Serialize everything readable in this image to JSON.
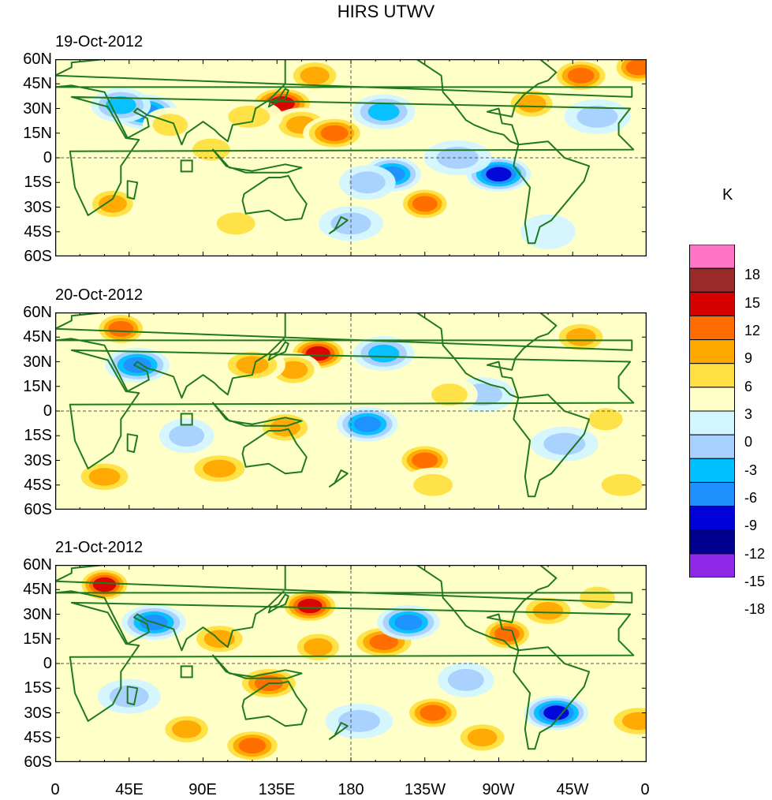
{
  "title": "HIRS UTWV",
  "units": "K",
  "lat_ticks": [
    "60N",
    "45N",
    "30N",
    "15N",
    "0",
    "15S",
    "30S",
    "45S",
    "60S"
  ],
  "lon_ticks": [
    "0",
    "45E",
    "90E",
    "135E",
    "180",
    "135W",
    "90W",
    "45W",
    "0"
  ],
  "panels": [
    {
      "date": "19-Oct-2012"
    },
    {
      "date": "20-Oct-2012"
    },
    {
      "date": "21-Oct-2012"
    }
  ],
  "colorbar": {
    "levels": [
      "18",
      "15",
      "12",
      "9",
      "6",
      "3",
      "0",
      "-3",
      "-6",
      "-9",
      "-12",
      "-15",
      "-18"
    ],
    "colors": [
      "#ff74c4",
      "#9a2a2a",
      "#d60000",
      "#ff6c00",
      "#ffa800",
      "#ffe040",
      "#ffffc8",
      "#d2f5ff",
      "#a8d0ff",
      "#00c0ff",
      "#2090ff",
      "#0000d8",
      "#000090",
      "#9028e8"
    ]
  },
  "colors": {
    "coastline": "#1f7a1f",
    "background_field": "#ffffc8"
  },
  "chart_data": {
    "type": "heatmap",
    "title": "HIRS UTWV",
    "units": "K",
    "x_range": [
      0,
      360
    ],
    "y_range": [
      -60,
      60
    ],
    "panels": [
      "19-Oct-2012",
      "20-Oct-2012",
      "21-Oct-2012"
    ],
    "anomalies": [
      [
        {
          "lon": 35,
          "lat": -28,
          "v": 9
        },
        {
          "lon": 55,
          "lat": 28,
          "v": -12
        },
        {
          "lon": 40,
          "lat": 32,
          "v": -9
        },
        {
          "lon": 70,
          "lat": 20,
          "v": 6
        },
        {
          "lon": 138,
          "lat": 33,
          "v": 15
        },
        {
          "lon": 150,
          "lat": 20,
          "v": 9
        },
        {
          "lon": 158,
          "lat": 50,
          "v": 9
        },
        {
          "lon": 118,
          "lat": 25,
          "v": 6
        },
        {
          "lon": 170,
          "lat": 15,
          "v": 12
        },
        {
          "lon": 205,
          "lat": -10,
          "v": -12
        },
        {
          "lon": 225,
          "lat": -28,
          "v": 12
        },
        {
          "lon": 270,
          "lat": -10,
          "v": -15
        },
        {
          "lon": 320,
          "lat": 50,
          "v": 12
        },
        {
          "lon": 290,
          "lat": 33,
          "v": 9
        },
        {
          "lon": 330,
          "lat": 25,
          "v": -6
        },
        {
          "lon": 110,
          "lat": -40,
          "v": 6
        },
        {
          "lon": 190,
          "lat": -15,
          "v": -6
        },
        {
          "lon": 245,
          "lat": 0,
          "v": -6
        },
        {
          "lon": 200,
          "lat": 28,
          "v": -9
        },
        {
          "lon": 60,
          "lat": -5,
          "v": 3
        },
        {
          "lon": 355,
          "lat": 55,
          "v": 12
        },
        {
          "lon": 180,
          "lat": -40,
          "v": -6
        },
        {
          "lon": 95,
          "lat": 5,
          "v": 6
        },
        {
          "lon": 300,
          "lat": -45,
          "v": -3
        }
      ],
      [
        {
          "lon": 40,
          "lat": 50,
          "v": 12
        },
        {
          "lon": 50,
          "lat": 28,
          "v": -12
        },
        {
          "lon": 160,
          "lat": 35,
          "v": 15
        },
        {
          "lon": 145,
          "lat": 25,
          "v": 9
        },
        {
          "lon": 120,
          "lat": 28,
          "v": 9
        },
        {
          "lon": 190,
          "lat": -8,
          "v": -12
        },
        {
          "lon": 225,
          "lat": -30,
          "v": 12
        },
        {
          "lon": 100,
          "lat": -35,
          "v": 9
        },
        {
          "lon": 30,
          "lat": -40,
          "v": 9
        },
        {
          "lon": 320,
          "lat": 45,
          "v": 9
        },
        {
          "lon": 335,
          "lat": -5,
          "v": 6
        },
        {
          "lon": 260,
          "lat": 10,
          "v": -6
        },
        {
          "lon": 140,
          "lat": -10,
          "v": 9
        },
        {
          "lon": 80,
          "lat": -15,
          "v": -6
        },
        {
          "lon": 345,
          "lat": -45,
          "v": 6
        },
        {
          "lon": 200,
          "lat": 35,
          "v": -9
        },
        {
          "lon": 240,
          "lat": 10,
          "v": 6
        },
        {
          "lon": 310,
          "lat": -20,
          "v": -6
        },
        {
          "lon": 230,
          "lat": -45,
          "v": 6
        }
      ],
      [
        {
          "lon": 30,
          "lat": 48,
          "v": 15
        },
        {
          "lon": 60,
          "lat": 25,
          "v": -12
        },
        {
          "lon": 155,
          "lat": 35,
          "v": 15
        },
        {
          "lon": 160,
          "lat": 10,
          "v": 9
        },
        {
          "lon": 130,
          "lat": -12,
          "v": 12
        },
        {
          "lon": 120,
          "lat": -50,
          "v": 12
        },
        {
          "lon": 80,
          "lat": -40,
          "v": 9
        },
        {
          "lon": 200,
          "lat": 13,
          "v": 12
        },
        {
          "lon": 215,
          "lat": 25,
          "v": -12
        },
        {
          "lon": 230,
          "lat": -30,
          "v": 12
        },
        {
          "lon": 275,
          "lat": 18,
          "v": 12
        },
        {
          "lon": 305,
          "lat": -30,
          "v": -15
        },
        {
          "lon": 300,
          "lat": 32,
          "v": 9
        },
        {
          "lon": 330,
          "lat": 40,
          "v": 6
        },
        {
          "lon": 355,
          "lat": -35,
          "v": 9
        },
        {
          "lon": 100,
          "lat": 15,
          "v": 9
        },
        {
          "lon": 250,
          "lat": -10,
          "v": -6
        },
        {
          "lon": 185,
          "lat": -35,
          "v": -6
        },
        {
          "lon": 45,
          "lat": -20,
          "v": -6
        },
        {
          "lon": 260,
          "lat": -45,
          "v": 9
        }
      ]
    ]
  }
}
